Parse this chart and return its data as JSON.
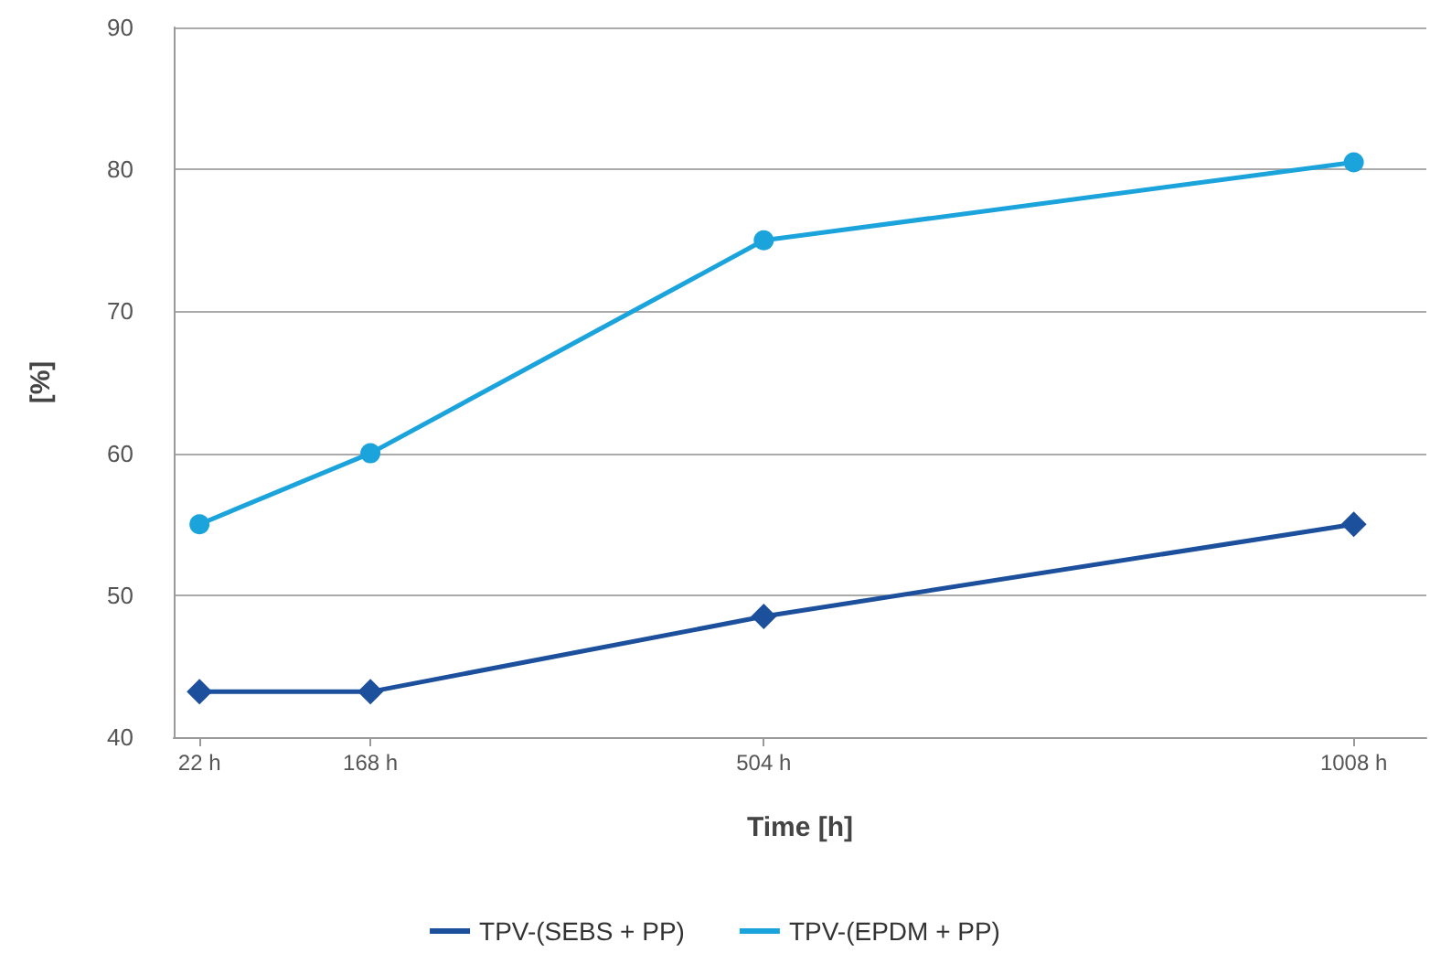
{
  "chart_data": {
    "type": "line",
    "xlabel": "Time [h]",
    "ylabel": "[%]",
    "x": [
      22,
      168,
      504,
      1008
    ],
    "xlim": [
      0,
      1070
    ],
    "xticks": [
      {
        "value": 22,
        "label": "22 h"
      },
      {
        "value": 168,
        "label": "168 h"
      },
      {
        "value": 504,
        "label": "504 h"
      },
      {
        "value": 1008,
        "label": "1008 h"
      }
    ],
    "ylim": [
      40,
      90
    ],
    "yticks": [
      40,
      50,
      60,
      70,
      80,
      90
    ],
    "series": [
      {
        "name": "TPV-(SEBS + PP)",
        "color": "#1c4f9c",
        "marker": "diamond",
        "values": [
          43.2,
          43.2,
          48.5,
          55
        ]
      },
      {
        "name": "TPV-(EPDM + PP)",
        "color": "#1ba3dc",
        "marker": "circle",
        "values": [
          55,
          60,
          75,
          80.5
        ]
      }
    ],
    "grid": "y",
    "legend": "bottom",
    "line_style": "solid"
  }
}
